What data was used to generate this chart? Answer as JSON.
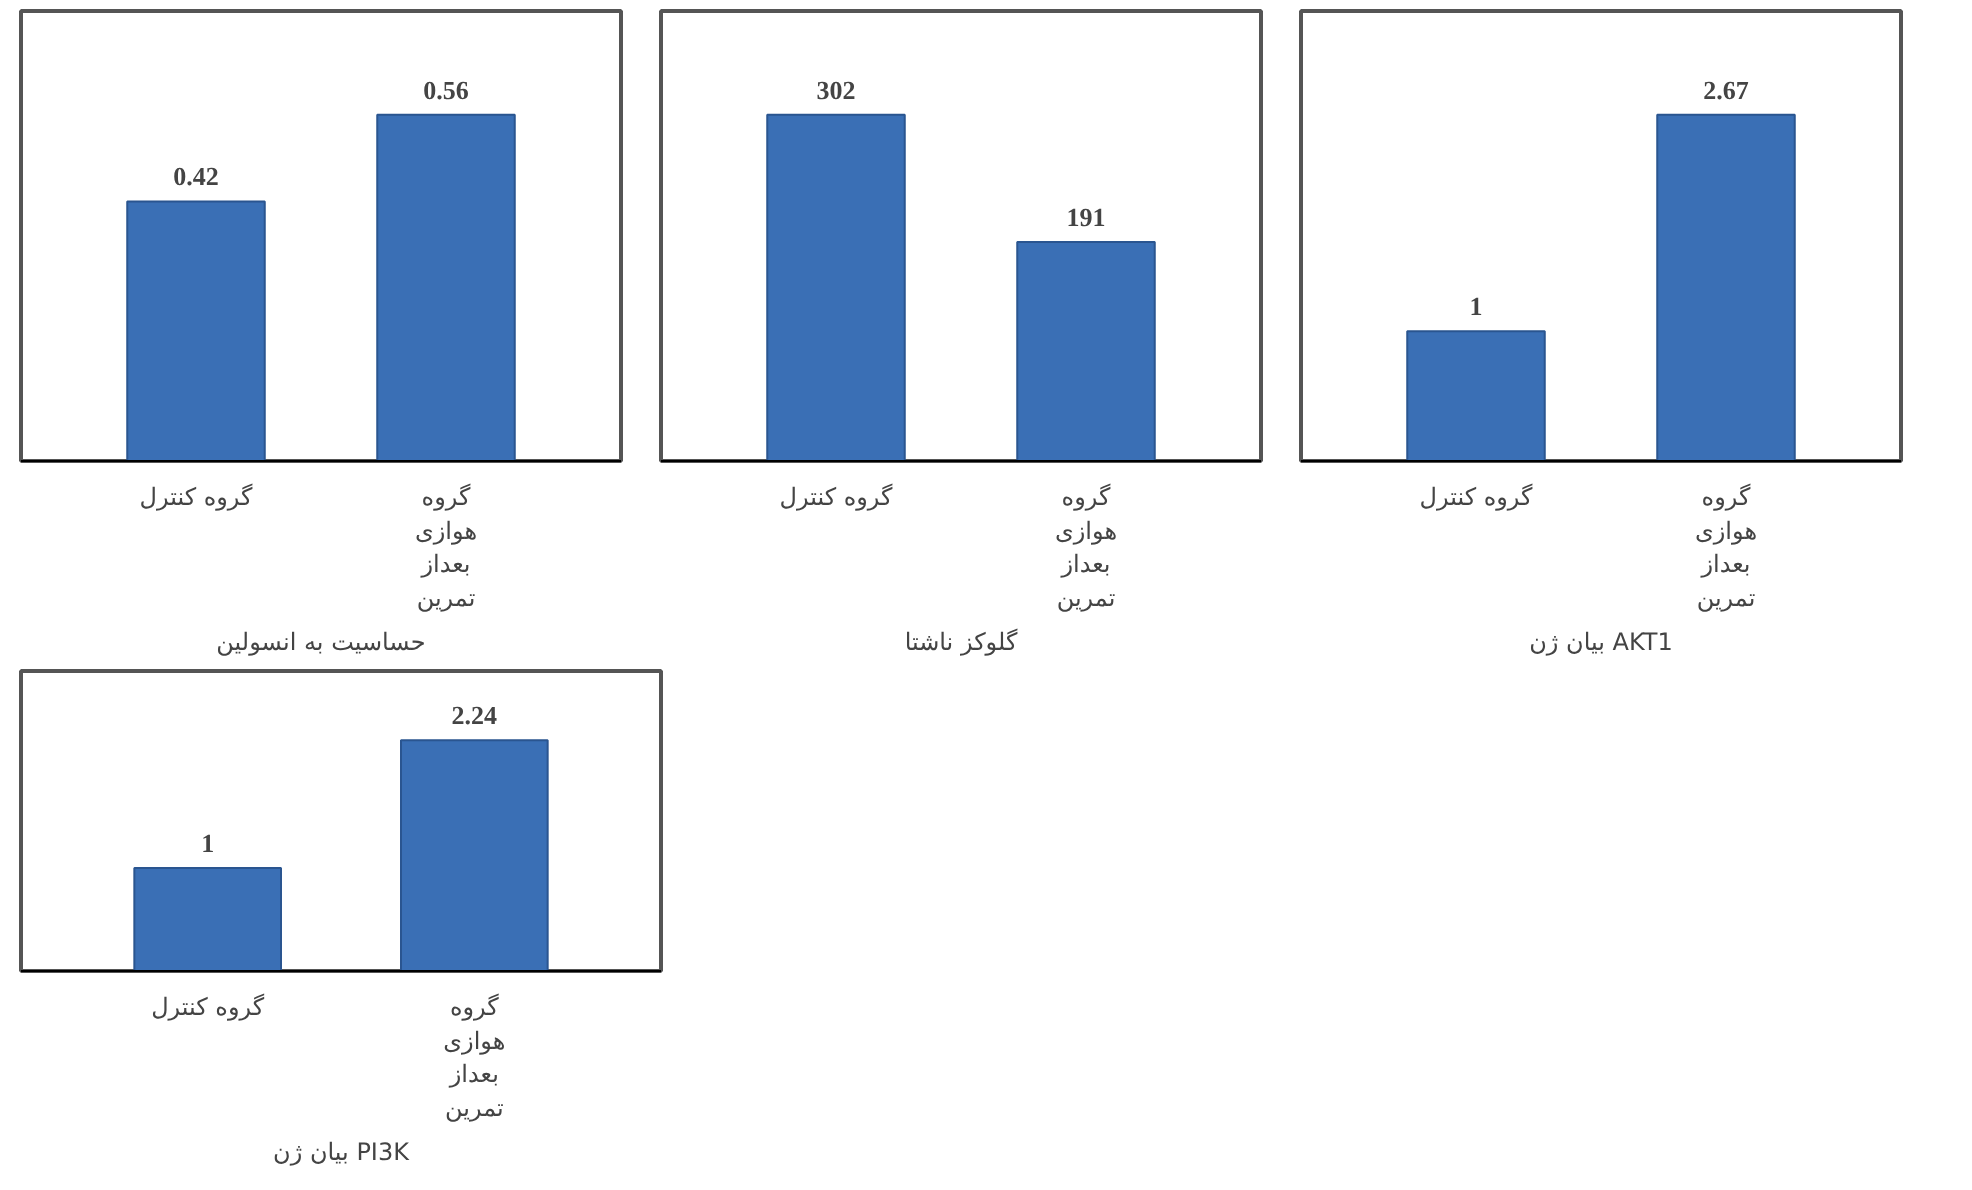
{
  "chart_data": [
    {
      "type": "bar",
      "xlabel": "حساسیت به انسولین",
      "categories": [
        "گروه کنترل",
        "گروه هوازی بعداز تمرین"
      ],
      "values": [
        0.42,
        0.56
      ],
      "color": "#3a6fb5",
      "data_labels": true
    },
    {
      "type": "bar",
      "xlabel": "گلوکز ناشتا",
      "categories": [
        "گروه کنترل",
        "گروه هوازی بعداز تمرین"
      ],
      "values": [
        302,
        191
      ],
      "color": "#3a6fb5",
      "data_labels": true
    },
    {
      "type": "bar",
      "xlabel": "بیان ژن AKT1",
      "categories": [
        "گروه کنترل",
        "گروه هوازی بعداز تمرین"
      ],
      "values": [
        1,
        2.67
      ],
      "color": "#3a6fb5",
      "data_labels": true
    },
    {
      "type": "bar",
      "xlabel": "بیان ژن PI3K",
      "categories": [
        "گروه کنترل",
        "گروه هوازی بعداز تمرین"
      ],
      "values": [
        1,
        2.24
      ],
      "color": "#3a6fb5",
      "data_labels": true
    }
  ]
}
